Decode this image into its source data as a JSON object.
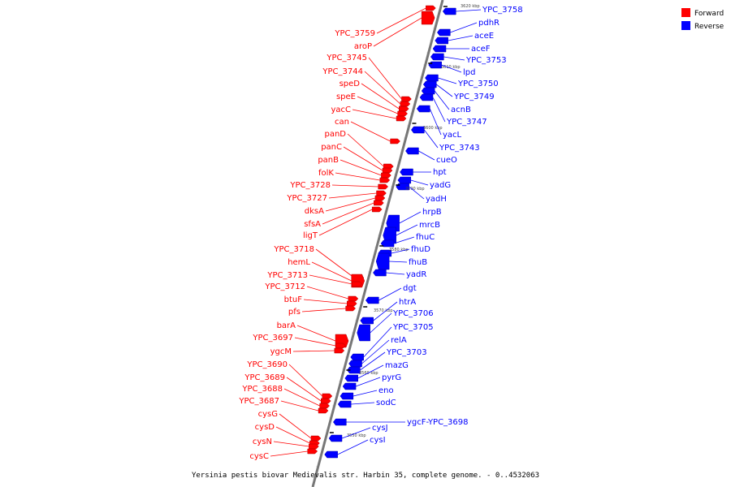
{
  "colors": {
    "forward": "#ff0000",
    "reverse": "#0000ff",
    "backbone": "#777777"
  },
  "legend": [
    {
      "key": "forward",
      "label": "Forward"
    },
    {
      "key": "reverse",
      "label": "Reverse"
    }
  ],
  "caption": "Yersinia pestis biovar Medievalis str. Harbin 35, complete genome. - 0..4532063",
  "scale_labels": [
    "3620 kbp",
    "3610 kbp",
    "3600 kbp",
    "3590 kbp",
    "3580 kbp",
    "3570 kbp",
    "3560 kbp",
    "3550 kbp"
  ],
  "forward_genes": [
    "YPC_3759",
    "aroP",
    "YPC_3745",
    "YPC_3744",
    "speD",
    "speE",
    "yacC",
    "can",
    "panD",
    "panC",
    "panB",
    "folK",
    "YPC_3728",
    "YPC_3727",
    "dksA",
    "sfsA",
    "ligT",
    "YPC_3718",
    "hemL",
    "YPC_3713",
    "YPC_3712",
    "btuF",
    "pfs",
    "barA",
    "YPC_3697",
    "ygcM",
    "YPC_3690",
    "YPC_3689",
    "YPC_3688",
    "YPC_3687",
    "cysG",
    "cysD",
    "cysN",
    "cysC"
  ],
  "reverse_genes": [
    "YPC_3758",
    "pdhR",
    "aceE",
    "aceF",
    "YPC_3753",
    "lpd",
    "YPC_3750",
    "YPC_3749",
    "acnB",
    "YPC_3747",
    "yacL",
    "YPC_3743",
    "cueO",
    "hpt",
    "yadG",
    "yadH",
    "hrpB",
    "mrcB",
    "fhuC",
    "fhuD",
    "fhuB",
    "yadR",
    "dgt",
    "htrA",
    "YPC_3706",
    "YPC_3705",
    "relA",
    "YPC_3703",
    "mazG",
    "pyrG",
    "eno",
    "sodC",
    "ygcF-YPC_3698",
    "cysJ",
    "cysI"
  ]
}
